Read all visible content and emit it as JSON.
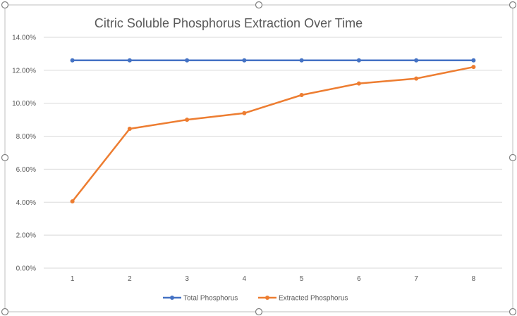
{
  "chart_data": {
    "type": "line",
    "title": "Citric Soluble Phosphorus Extraction Over Time",
    "xlabel": "",
    "ylabel": "",
    "categories": [
      "1",
      "2",
      "3",
      "4",
      "5",
      "6",
      "7",
      "8"
    ],
    "ylim": [
      0,
      0.14
    ],
    "yticks": [
      "0.00%",
      "2.00%",
      "4.00%",
      "6.00%",
      "8.00%",
      "10.00%",
      "12.00%",
      "14.00%"
    ],
    "grid": true,
    "legend": "bottom",
    "series": [
      {
        "name": "Total Phosphorus",
        "color": "#4472c4",
        "values": [
          0.126,
          0.126,
          0.126,
          0.126,
          0.126,
          0.126,
          0.126,
          0.126
        ]
      },
      {
        "name": "Extracted Phosphorus",
        "color": "#ed7d31",
        "values": [
          0.0405,
          0.0845,
          0.09,
          0.094,
          0.105,
          0.112,
          0.115,
          0.122
        ]
      }
    ]
  }
}
